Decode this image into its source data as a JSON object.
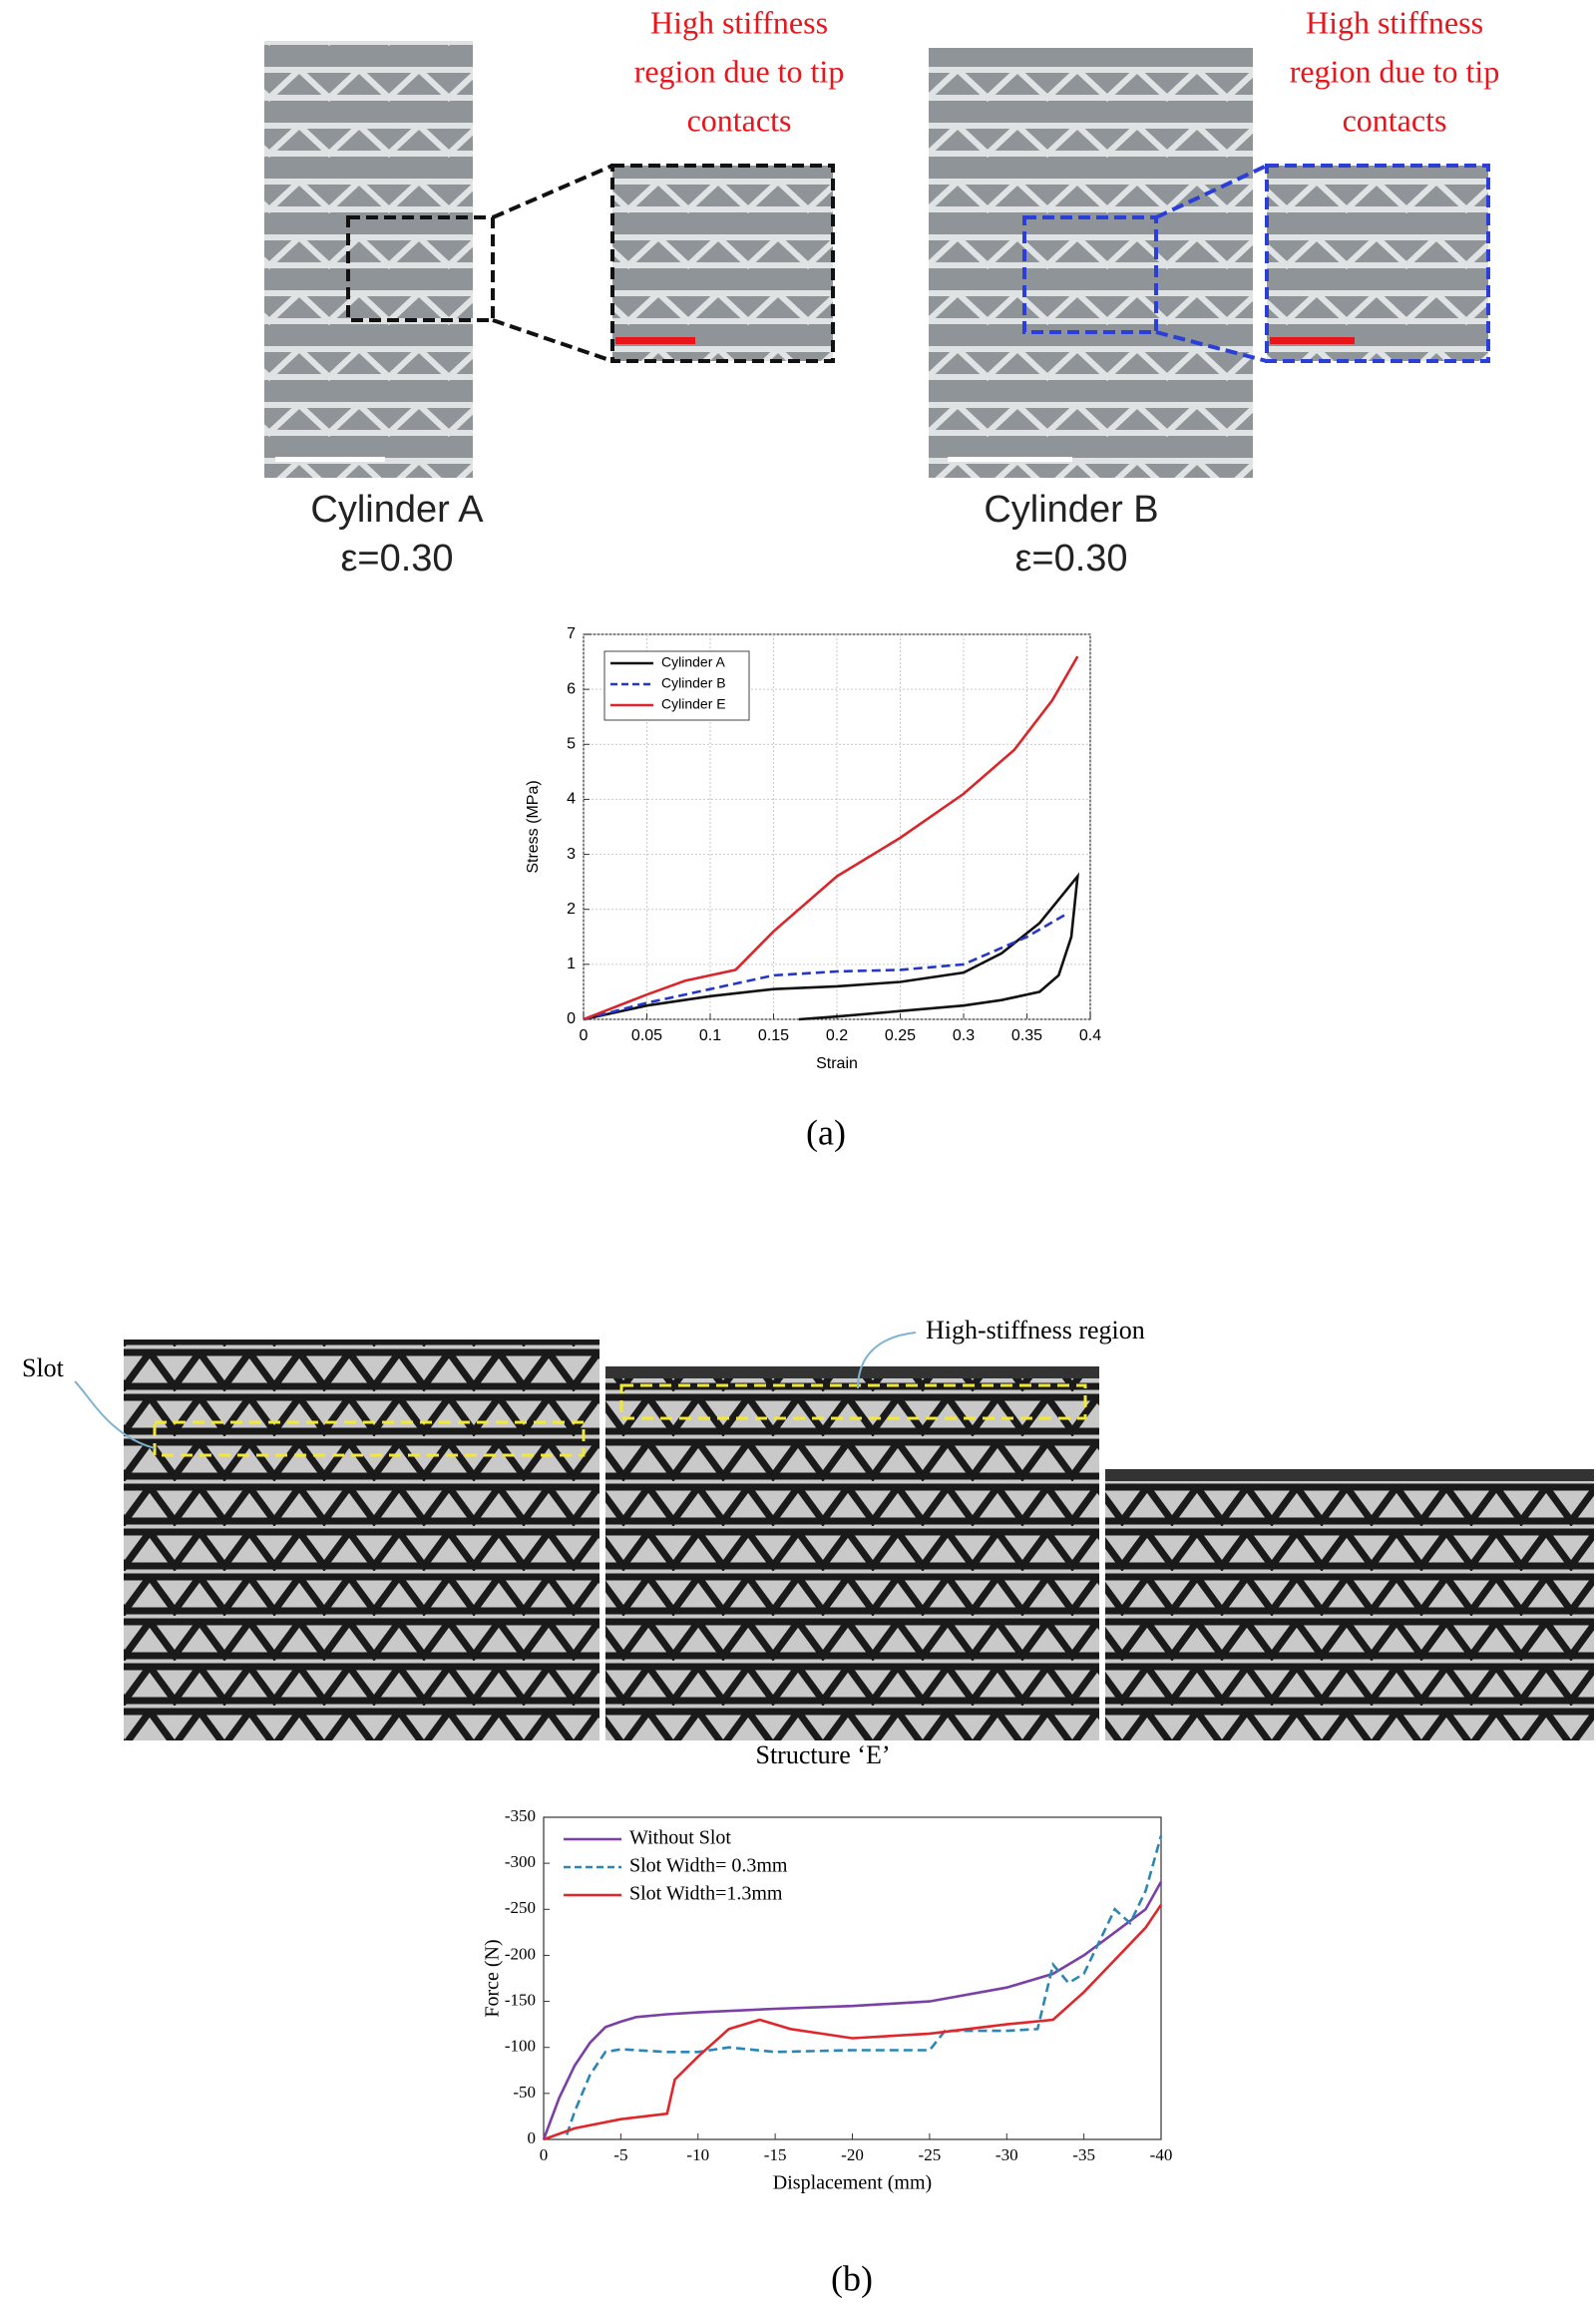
{
  "panel_a": {
    "annotation_left": [
      "High stiffness",
      "region due to tip",
      "contacts"
    ],
    "annotation_right": [
      "High stiffness",
      "region due to tip",
      "contacts"
    ],
    "caption_left": [
      "Cylinder A",
      "ε=0.30"
    ],
    "caption_right": [
      "Cylinder B",
      "ε=0.30"
    ],
    "label": "(a)"
  },
  "panel_b": {
    "slot_label": "Slot",
    "region_label": "High-stiffness region",
    "caption": "Structure ‘E’",
    "label": "(b)"
  },
  "chart_data": [
    {
      "type": "line",
      "xlabel": "Strain",
      "ylabel": "Stress (MPa)",
      "xlim": [
        0,
        0.4
      ],
      "ylim": [
        0,
        7
      ],
      "xticks": [
        0,
        0.05,
        0.1,
        0.15,
        0.2,
        0.25,
        0.3,
        0.35,
        0.4
      ],
      "yticks": [
        0,
        1,
        2,
        3,
        4,
        5,
        6,
        7
      ],
      "grid": true,
      "legend": "upper left",
      "series": [
        {
          "name": "Cylinder A",
          "color": "#111111",
          "line_style": "solid",
          "x": [
            0,
            0.05,
            0.1,
            0.15,
            0.2,
            0.25,
            0.3,
            0.33,
            0.36,
            0.39,
            0.385,
            0.375,
            0.36,
            0.33,
            0.3,
            0.25,
            0.2,
            0.17
          ],
          "values": [
            0,
            0.25,
            0.42,
            0.55,
            0.6,
            0.68,
            0.85,
            1.2,
            1.75,
            2.6,
            1.5,
            0.8,
            0.5,
            0.35,
            0.25,
            0.15,
            0.05,
            0
          ]
        },
        {
          "name": "Cylinder B",
          "color": "#2436c8",
          "line_style": "dashed",
          "x": [
            0,
            0.05,
            0.1,
            0.15,
            0.2,
            0.25,
            0.3,
            0.35,
            0.38
          ],
          "values": [
            0,
            0.3,
            0.55,
            0.8,
            0.87,
            0.9,
            1.0,
            1.5,
            1.9
          ]
        },
        {
          "name": "Cylinder E",
          "color": "#d9262b",
          "line_style": "solid",
          "x": [
            0,
            0.05,
            0.08,
            0.12,
            0.15,
            0.2,
            0.25,
            0.3,
            0.34,
            0.37,
            0.39
          ],
          "values": [
            0,
            0.45,
            0.7,
            0.9,
            1.6,
            2.6,
            3.3,
            4.1,
            4.9,
            5.8,
            6.6
          ]
        }
      ]
    },
    {
      "type": "line",
      "xlabel": "Displacement (mm)",
      "ylabel": "Force (N)",
      "xlim": [
        0,
        -40
      ],
      "ylim": [
        0,
        -350
      ],
      "xticks": [
        0,
        -5,
        -10,
        -15,
        -20,
        -25,
        -30,
        -35,
        -40
      ],
      "yticks": [
        0,
        -50,
        -100,
        -150,
        -200,
        -250,
        -300,
        -350
      ],
      "grid": false,
      "legend": "upper left",
      "series": [
        {
          "name": "Without Slot",
          "color": "#7b3fa8",
          "line_style": "solid",
          "x": [
            0,
            -1,
            -2,
            -3,
            -4,
            -5,
            -6,
            -8,
            -10,
            -15,
            -20,
            -25,
            -30,
            -33,
            -35,
            -37,
            -39,
            -40
          ],
          "values": [
            0,
            -45,
            -80,
            -105,
            -122,
            -128,
            -133,
            -136,
            -138,
            -142,
            -145,
            -150,
            -165,
            -180,
            -200,
            -225,
            -250,
            -280
          ]
        },
        {
          "name": "Slot Width= 0.3mm",
          "color": "#2b86b5",
          "line_style": "dashed",
          "x": [
            -1.5,
            -2,
            -3,
            -4,
            -5,
            -8,
            -10,
            -12,
            -15,
            -20,
            -25,
            -26,
            -30,
            -32,
            -33,
            -34,
            -35,
            -36,
            -37,
            -38,
            -39,
            -40
          ],
          "values": [
            -5,
            -30,
            -70,
            -95,
            -98,
            -95,
            -95,
            -100,
            -95,
            -97,
            -97,
            -118,
            -118,
            -120,
            -190,
            -170,
            -180,
            -215,
            -250,
            -235,
            -270,
            -330
          ]
        },
        {
          "name": "Slot Width=1.3mm",
          "color": "#e0262b",
          "line_style": "solid",
          "x": [
            0,
            -2,
            -5,
            -8,
            -8.5,
            -10,
            -12,
            -14,
            -16,
            -18,
            -20,
            -25,
            -30,
            -33,
            -35,
            -37,
            -39,
            -40
          ],
          "values": [
            0,
            -12,
            -22,
            -28,
            -65,
            -90,
            -120,
            -130,
            -120,
            -115,
            -110,
            -115,
            -125,
            -130,
            -160,
            -195,
            -230,
            -255
          ]
        }
      ]
    }
  ]
}
